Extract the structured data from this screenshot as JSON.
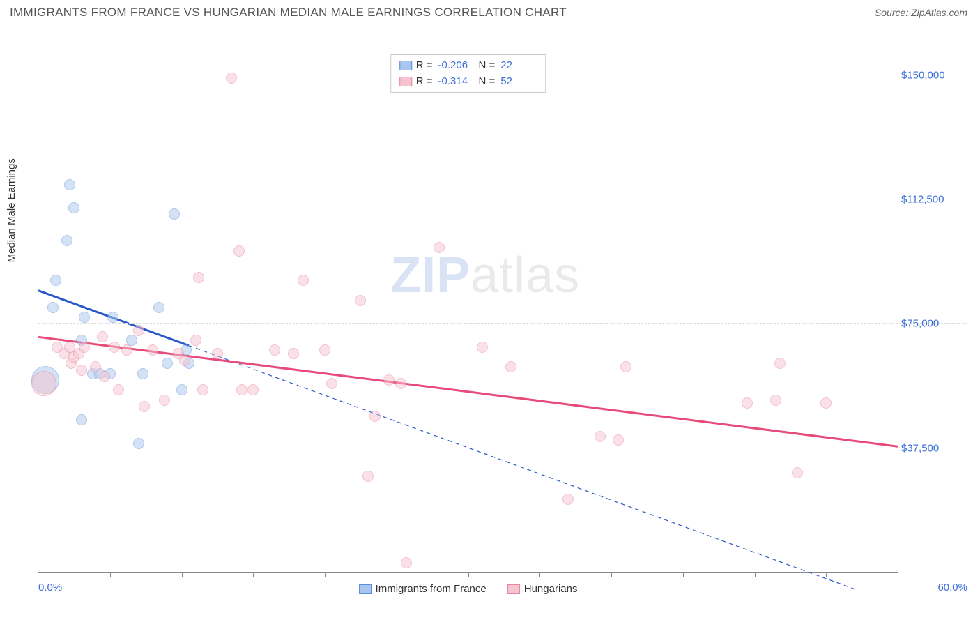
{
  "header": {
    "title": "IMMIGRANTS FROM FRANCE VS HUNGARIAN MEDIAN MALE EARNINGS CORRELATION CHART",
    "source": "Source: ZipAtlas.com"
  },
  "watermark": {
    "part1": "ZIP",
    "part2": "atlas"
  },
  "chart": {
    "type": "scatter",
    "ylabel": "Median Male Earnings",
    "xlim": [
      0,
      60
    ],
    "ylim": [
      0,
      160000
    ],
    "x_unit": "%",
    "xlabel_min": "0.0%",
    "xlabel_max": "60.0%",
    "xtick_positions": [
      5,
      10,
      15,
      20,
      25,
      30,
      35,
      40,
      45,
      50,
      55,
      60
    ],
    "yticks": [
      {
        "v": 37500,
        "label": "$37,500"
      },
      {
        "v": 75000,
        "label": "$75,000"
      },
      {
        "v": 112500,
        "label": "$112,500"
      },
      {
        "v": 150000,
        "label": "$150,000"
      }
    ],
    "background_color": "#ffffff",
    "grid_color": "#dddddd",
    "axis_color": "#888888",
    "tick_label_color": "#3b6fd8",
    "point_radius": 8,
    "point_opacity": 0.5,
    "series": [
      {
        "id": "france",
        "label": "Immigrants from France",
        "fill": "#a9c6ef",
        "stroke": "#5b8fd6",
        "trend_color": "#2a58c9",
        "trend_width": 3,
        "trend_solid_range": [
          0,
          10.5
        ],
        "trend_dash_range": [
          10.5,
          57
        ],
        "trend": {
          "x1": 0,
          "y1": 85000,
          "x2": 57,
          "y2": -5000
        },
        "R": "-0.206",
        "N": "22",
        "points": [
          {
            "x": 0.5,
            "y": 58000,
            "r": 20
          },
          {
            "x": 1.2,
            "y": 88000
          },
          {
            "x": 1.0,
            "y": 80000
          },
          {
            "x": 2.0,
            "y": 100000
          },
          {
            "x": 2.2,
            "y": 117000
          },
          {
            "x": 2.5,
            "y": 110000
          },
          {
            "x": 3.8,
            "y": 60000
          },
          {
            "x": 3.0,
            "y": 70000
          },
          {
            "x": 3.2,
            "y": 77000
          },
          {
            "x": 4.3,
            "y": 60000
          },
          {
            "x": 3.0,
            "y": 46000
          },
          {
            "x": 5.0,
            "y": 60000
          },
          {
            "x": 5.2,
            "y": 77000
          },
          {
            "x": 6.5,
            "y": 70000
          },
          {
            "x": 7.0,
            "y": 39000
          },
          {
            "x": 7.3,
            "y": 60000
          },
          {
            "x": 8.4,
            "y": 80000
          },
          {
            "x": 9.0,
            "y": 63000
          },
          {
            "x": 9.5,
            "y": 108000
          },
          {
            "x": 10.0,
            "y": 55000
          },
          {
            "x": 10.3,
            "y": 67000
          },
          {
            "x": 10.5,
            "y": 63000
          }
        ]
      },
      {
        "id": "hungary",
        "label": "Hungarians",
        "fill": "#f5c4d1",
        "stroke": "#e9839f",
        "trend_color": "#e84a7a",
        "trend_width": 3,
        "trend_solid_range": [
          0,
          60
        ],
        "trend": {
          "x1": 0,
          "y1": 71000,
          "x2": 60,
          "y2": 38000
        },
        "R": "-0.314",
        "N": "52",
        "points": [
          {
            "x": 0.4,
            "y": 57000,
            "r": 18
          },
          {
            "x": 1.3,
            "y": 68000
          },
          {
            "x": 1.8,
            "y": 66000
          },
          {
            "x": 2.2,
            "y": 68000
          },
          {
            "x": 2.3,
            "y": 63000
          },
          {
            "x": 2.5,
            "y": 65000
          },
          {
            "x": 2.8,
            "y": 66000
          },
          {
            "x": 3.0,
            "y": 61000
          },
          {
            "x": 3.2,
            "y": 68000
          },
          {
            "x": 4.0,
            "y": 62000
          },
          {
            "x": 4.5,
            "y": 71000
          },
          {
            "x": 4.6,
            "y": 59000
          },
          {
            "x": 5.3,
            "y": 68000
          },
          {
            "x": 5.6,
            "y": 55000
          },
          {
            "x": 6.2,
            "y": 67000
          },
          {
            "x": 7.0,
            "y": 73000
          },
          {
            "x": 7.4,
            "y": 50000
          },
          {
            "x": 8.0,
            "y": 67000
          },
          {
            "x": 8.8,
            "y": 52000
          },
          {
            "x": 9.8,
            "y": 66000
          },
          {
            "x": 10.2,
            "y": 64000
          },
          {
            "x": 11.0,
            "y": 70000
          },
          {
            "x": 11.2,
            "y": 89000
          },
          {
            "x": 11.5,
            "y": 55000
          },
          {
            "x": 12.5,
            "y": 66000
          },
          {
            "x": 13.5,
            "y": 149000
          },
          {
            "x": 14.0,
            "y": 97000
          },
          {
            "x": 14.2,
            "y": 55000
          },
          {
            "x": 15.0,
            "y": 55000
          },
          {
            "x": 16.5,
            "y": 67000
          },
          {
            "x": 17.8,
            "y": 66000
          },
          {
            "x": 18.5,
            "y": 88000
          },
          {
            "x": 20.0,
            "y": 67000
          },
          {
            "x": 20.5,
            "y": 57000
          },
          {
            "x": 22.5,
            "y": 82000
          },
          {
            "x": 23.0,
            "y": 29000
          },
          {
            "x": 23.5,
            "y": 47000
          },
          {
            "x": 24.5,
            "y": 58000
          },
          {
            "x": 25.3,
            "y": 57000
          },
          {
            "x": 25.7,
            "y": 3000
          },
          {
            "x": 28.0,
            "y": 98000
          },
          {
            "x": 31.0,
            "y": 68000
          },
          {
            "x": 33.0,
            "y": 62000
          },
          {
            "x": 37.0,
            "y": 22000
          },
          {
            "x": 39.2,
            "y": 41000
          },
          {
            "x": 40.5,
            "y": 40000
          },
          {
            "x": 41.0,
            "y": 62000
          },
          {
            "x": 49.5,
            "y": 51000
          },
          {
            "x": 51.5,
            "y": 52000
          },
          {
            "x": 53.0,
            "y": 30000
          },
          {
            "x": 51.8,
            "y": 63000
          },
          {
            "x": 55.0,
            "y": 51000
          }
        ]
      }
    ]
  }
}
